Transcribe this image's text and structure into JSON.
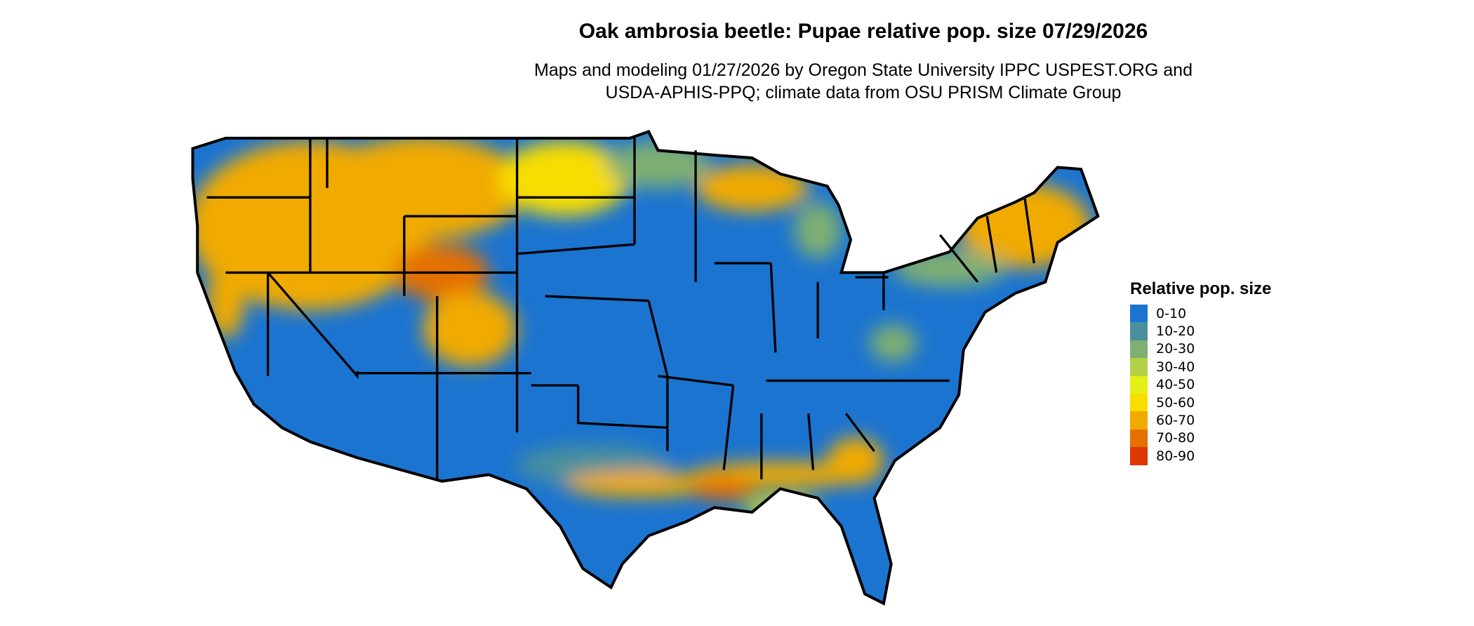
{
  "title": "Oak ambrosia beetle: Pupae relative pop. size 07/29/2026",
  "subtitle_line1": "Maps and modeling 01/27/2026 by Oregon State University IPPC USPEST.ORG and",
  "subtitle_line2": "USDA-APHIS-PPQ; climate data from OSU PRISM Climate Group",
  "legend": {
    "title": "Relative pop. size",
    "items": [
      {
        "label": "0-10",
        "color": "#1b74d0"
      },
      {
        "label": "10-20",
        "color": "#4a8f9e"
      },
      {
        "label": "20-30",
        "color": "#7faf72"
      },
      {
        "label": "30-40",
        "color": "#b2d146"
      },
      {
        "label": "40-50",
        "color": "#e4f016"
      },
      {
        "label": "50-60",
        "color": "#f8dd00"
      },
      {
        "label": "60-70",
        "color": "#f0aa00"
      },
      {
        "label": "70-80",
        "color": "#e47000"
      },
      {
        "label": "80-90",
        "color": "#dc3800"
      }
    ]
  }
}
